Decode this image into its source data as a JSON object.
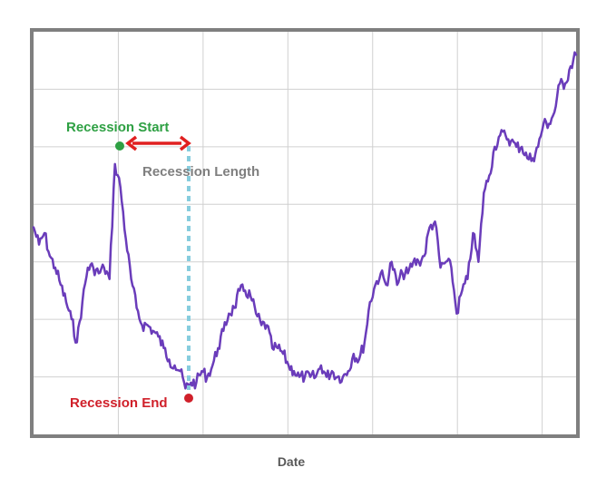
{
  "chart_data": {
    "type": "line",
    "title": "",
    "xlabel": "Date",
    "ylabel": "",
    "xlim": [
      0,
      100
    ],
    "ylim": [
      0,
      7
    ],
    "grid": true,
    "series": [
      {
        "values": [
          [
            0,
            3.6
          ],
          [
            1,
            3.3
          ],
          [
            2,
            3.5
          ],
          [
            3,
            3.1
          ],
          [
            4,
            2.9
          ],
          [
            5,
            2.6
          ],
          [
            6,
            2.3
          ],
          [
            7,
            2.0
          ],
          [
            8,
            1.6
          ],
          [
            9,
            2.3
          ],
          [
            10,
            2.9
          ],
          [
            11,
            2.9
          ],
          [
            12,
            2.8
          ],
          [
            13,
            2.9
          ],
          [
            14,
            2.7
          ],
          [
            15,
            4.7
          ],
          [
            16,
            4.3
          ],
          [
            17,
            3.4
          ],
          [
            18,
            2.7
          ],
          [
            19,
            2.2
          ],
          [
            20,
            1.9
          ],
          [
            21,
            1.9
          ],
          [
            22,
            1.8
          ],
          [
            23,
            1.7
          ],
          [
            24,
            1.5
          ],
          [
            25,
            1.3
          ],
          [
            26,
            1.2
          ],
          [
            27,
            1.1
          ],
          [
            28,
            0.8
          ],
          [
            29,
            0.9
          ],
          [
            30,
            0.9
          ],
          [
            31,
            1.1
          ],
          [
            32,
            1.0
          ],
          [
            33,
            1.2
          ],
          [
            34,
            1.5
          ],
          [
            35,
            1.8
          ],
          [
            36,
            2.1
          ],
          [
            37,
            2.2
          ],
          [
            38,
            2.5
          ],
          [
            39,
            2.5
          ],
          [
            40,
            2.4
          ],
          [
            41,
            2.1
          ],
          [
            42,
            1.9
          ],
          [
            43,
            1.9
          ],
          [
            44,
            1.5
          ],
          [
            45,
            1.5
          ],
          [
            46,
            1.4
          ],
          [
            47,
            1.2
          ],
          [
            48,
            1.1
          ],
          [
            49,
            1.0
          ],
          [
            50,
            1.0
          ],
          [
            51,
            1.0
          ],
          [
            52,
            1.0
          ],
          [
            53,
            1.2
          ],
          [
            54,
            1.0
          ],
          [
            55,
            1.1
          ],
          [
            56,
            1.0
          ],
          [
            57,
            1.0
          ],
          [
            58,
            1.1
          ],
          [
            59,
            1.4
          ],
          [
            60,
            1.3
          ],
          [
            61,
            1.6
          ],
          [
            62,
            2.3
          ],
          [
            63,
            2.6
          ],
          [
            64,
            2.8
          ],
          [
            65,
            2.6
          ],
          [
            66,
            3.0
          ],
          [
            67,
            2.6
          ],
          [
            68,
            2.8
          ],
          [
            69,
            2.8
          ],
          [
            70,
            3.0
          ],
          [
            71,
            3.0
          ],
          [
            72,
            3.1
          ],
          [
            73,
            3.6
          ],
          [
            74,
            3.7
          ],
          [
            75,
            2.9
          ],
          [
            76,
            3.0
          ],
          [
            77,
            2.9
          ],
          [
            78,
            2.1
          ],
          [
            79,
            2.5
          ],
          [
            80,
            2.7
          ],
          [
            81,
            3.5
          ],
          [
            82,
            3.0
          ],
          [
            83,
            4.2
          ],
          [
            84,
            4.5
          ],
          [
            85,
            5.0
          ],
          [
            86,
            5.2
          ],
          [
            87,
            5.2
          ],
          [
            88,
            5.1
          ],
          [
            89,
            5.0
          ],
          [
            90,
            5.0
          ],
          [
            91,
            4.8
          ],
          [
            92,
            4.8
          ],
          [
            93,
            5.0
          ],
          [
            94,
            5.4
          ],
          [
            95,
            5.4
          ],
          [
            96,
            5.6
          ],
          [
            97,
            6.1
          ],
          [
            98,
            6.1
          ],
          [
            99,
            6.4
          ],
          [
            100,
            6.6
          ]
        ]
      }
    ],
    "annotations": {
      "start_label": "Recession Start",
      "end_label": "Recession End",
      "length_label": "Recession Length",
      "start_point": [
        15.5,
        4.5
      ],
      "end_point": [
        28,
        0.8
      ]
    },
    "colors": {
      "line": "#6a3cba",
      "start": "#2ea043",
      "end": "#d0202a",
      "arrow": "#e02020",
      "dotted": "#87cdde",
      "grid": "#d0d0d0",
      "frame": "#7f7f7f"
    }
  }
}
